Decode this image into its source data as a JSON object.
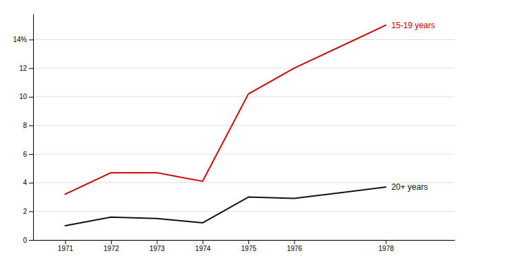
{
  "chart_data": {
    "type": "line",
    "x": [
      1971,
      1972,
      1973,
      1974,
      1975,
      1976,
      1978
    ],
    "series": [
      {
        "name": "15-19 years",
        "color": "#cc0000",
        "values": [
          3.2,
          4.7,
          4.7,
          4.1,
          10.2,
          12.0,
          15.0
        ]
      },
      {
        "name": "20+ years",
        "color": "#111111",
        "values": [
          1.0,
          1.6,
          1.5,
          1.2,
          3.0,
          2.9,
          3.7
        ]
      }
    ],
    "xlim": [
      1970.3,
      1979.5
    ],
    "xticks": [
      1971,
      1972,
      1973,
      1974,
      1975,
      1976,
      1978
    ],
    "ylim": [
      0,
      15.8
    ],
    "yticks": [
      0,
      2,
      4,
      6,
      8,
      10,
      12,
      {
        "value": 14,
        "label": "14%"
      }
    ],
    "grid": true
  }
}
